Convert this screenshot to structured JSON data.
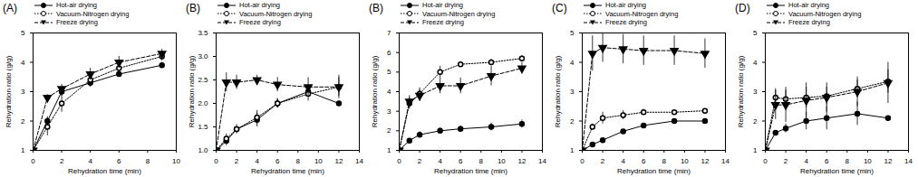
{
  "chart_data": [
    {
      "type": "line",
      "title": "(A)",
      "x_label": "Rehydration time (min)",
      "y_label": "Rehydration ratio (g/g)",
      "x": [
        0,
        1,
        2,
        4,
        6,
        9
      ],
      "xlim": [
        0,
        10
      ],
      "xticks": [
        0,
        2,
        4,
        6,
        8,
        10
      ],
      "ylim": [
        1,
        5
      ],
      "yticks": [
        1,
        2,
        3,
        4,
        5
      ],
      "series": [
        {
          "name": "Hot-air drying",
          "color": "#000000",
          "marker": "circle",
          "line_style": "solid",
          "values": [
            1,
            2.0,
            3.0,
            3.3,
            3.6,
            3.9
          ],
          "errors": [
            0,
            0.15,
            0.15,
            0.15,
            0.1,
            0.1
          ]
        },
        {
          "name": "Vacuum-Nitrogen drying",
          "color": "#000000",
          "marker": "open_circle",
          "line_style": "dotted",
          "values": [
            1,
            1.8,
            2.6,
            3.4,
            3.8,
            4.2
          ],
          "errors": [
            0,
            0.3,
            0.3,
            0.2,
            0.15,
            0.15
          ]
        },
        {
          "name": "Freeze drying",
          "color": "#000000",
          "marker": "triangle_down",
          "line_style": "dashed",
          "values": [
            1,
            2.8,
            3.1,
            3.6,
            4.0,
            4.3
          ],
          "errors": [
            0,
            0.1,
            0.15,
            0.2,
            0.2,
            0.15
          ]
        }
      ]
    },
    {
      "type": "line",
      "title": "(B)",
      "x_label": "Rehydration time (min)",
      "y_label": "Rehydration ratio (g/g)",
      "x": [
        0,
        1,
        2,
        4,
        6,
        9,
        12
      ],
      "xlim": [
        0,
        14
      ],
      "xticks": [
        0,
        2,
        4,
        6,
        8,
        10,
        12,
        14
      ],
      "ylim": [
        1,
        3.5
      ],
      "yticks": [
        {
          "value": 1,
          "label": "1.0"
        },
        {
          "value": 1.5,
          "label": "1.5"
        },
        {
          "value": 2,
          "label": "2.0"
        },
        {
          "value": 2.5,
          "label": "2.5"
        },
        {
          "value": 3,
          "label": "3.0"
        },
        {
          "value": 3.5,
          "label": "3.5"
        }
      ],
      "series": [
        {
          "name": "Hot-air drying",
          "color": "#000000",
          "marker": "circle",
          "line_style": "solid",
          "values": [
            1,
            1.2,
            1.45,
            1.65,
            2.0,
            2.25,
            2.0
          ],
          "errors": [
            0,
            0.1,
            0.05,
            0.15,
            0.1,
            0.1,
            0.05
          ]
        },
        {
          "name": "Vacuum-Nitrogen drying",
          "color": "#000000",
          "marker": "open_circle",
          "line_style": "dotted",
          "values": [
            1,
            1.25,
            1.45,
            1.7,
            2.0,
            2.2,
            2.35
          ],
          "errors": [
            0,
            0.1,
            0.1,
            0.15,
            0.1,
            0.15,
            0.2
          ]
        },
        {
          "name": "Freeze drying",
          "color": "#000000",
          "marker": "triangle_down",
          "line_style": "dashed",
          "values": [
            1,
            2.45,
            2.45,
            2.5,
            2.4,
            2.35,
            2.35
          ],
          "errors": [
            0,
            0.2,
            0.15,
            0.1,
            0.15,
            0.2,
            0.25
          ]
        }
      ]
    },
    {
      "type": "line",
      "title": "(B)",
      "x_label": "Rehydration time (min)",
      "y_label": "Rehydration ratio (g/g)",
      "x": [
        0,
        1,
        2,
        4,
        6,
        9,
        12
      ],
      "xlim": [
        0,
        14
      ],
      "xticks": [
        0,
        2,
        4,
        6,
        8,
        10,
        12,
        14
      ],
      "ylim": [
        1,
        7
      ],
      "yticks": [
        1,
        2,
        3,
        4,
        5,
        6,
        7
      ],
      "series": [
        {
          "name": "Hot-air drying",
          "color": "#000000",
          "marker": "circle",
          "line_style": "solid",
          "values": [
            1,
            1.5,
            1.8,
            2.0,
            2.1,
            2.2,
            2.35
          ],
          "errors": [
            0,
            0.1,
            0.15,
            0.15,
            0.15,
            0.2,
            0.2
          ]
        },
        {
          "name": "Vacuum-Nitrogen drying",
          "color": "#000000",
          "marker": "open_circle",
          "line_style": "dotted",
          "values": [
            1,
            3.4,
            3.9,
            5.0,
            5.4,
            5.5,
            5.7
          ],
          "errors": [
            0,
            0.3,
            0.3,
            0.3,
            0.1,
            0.15,
            0.15
          ]
        },
        {
          "name": "Freeze drying",
          "color": "#000000",
          "marker": "triangle_down",
          "line_style": "dashed",
          "values": [
            1,
            3.5,
            3.8,
            4.3,
            4.3,
            4.8,
            5.2
          ],
          "errors": [
            0,
            0.3,
            0.3,
            0.4,
            0.4,
            0.5,
            0.3
          ]
        }
      ]
    },
    {
      "type": "line",
      "title": "(C)",
      "x_label": "Rehydration time (min)",
      "y_label": "Rehydration ratio (g/g)",
      "x": [
        0,
        1,
        2,
        4,
        6,
        9,
        12
      ],
      "xlim": [
        0,
        14
      ],
      "xticks": [
        0,
        2,
        4,
        6,
        8,
        10,
        12,
        14
      ],
      "ylim": [
        1,
        5
      ],
      "yticks": [
        1,
        2,
        3,
        4,
        5
      ],
      "series": [
        {
          "name": "Hot-air drying",
          "color": "#000000",
          "marker": "circle",
          "line_style": "solid",
          "values": [
            1,
            1.2,
            1.35,
            1.65,
            1.85,
            2.0,
            2.0
          ],
          "errors": [
            0,
            0.05,
            0.05,
            0.05,
            0.05,
            0.05,
            0.05
          ]
        },
        {
          "name": "Vacuum-Nitrogen drying",
          "color": "#000000",
          "marker": "open_circle",
          "line_style": "dotted",
          "values": [
            1,
            1.8,
            2.1,
            2.2,
            2.3,
            2.3,
            2.35
          ],
          "errors": [
            0,
            0.1,
            0.2,
            0.15,
            0.1,
            0.05,
            0.05
          ]
        },
        {
          "name": "Freeze drying",
          "color": "#000000",
          "marker": "triangle_down",
          "line_style": "dashed",
          "values": [
            1,
            4.3,
            4.5,
            4.45,
            4.4,
            4.4,
            4.3
          ],
          "errors": [
            0,
            0.6,
            0.5,
            0.5,
            0.5,
            0.5,
            0.5
          ]
        }
      ]
    },
    {
      "type": "line",
      "title": "(D)",
      "x_label": "Rehydration time (min)",
      "y_label": "Rehydration ratio (g/g)",
      "x": [
        0,
        1,
        2,
        4,
        6,
        9,
        12
      ],
      "xlim": [
        0,
        14
      ],
      "xticks": [
        0,
        2,
        4,
        6,
        8,
        10,
        12,
        14
      ],
      "ylim": [
        1,
        5
      ],
      "yticks": [
        1,
        2,
        3,
        4,
        5
      ],
      "series": [
        {
          "name": "Hot-air drying",
          "color": "#000000",
          "marker": "circle",
          "line_style": "solid",
          "values": [
            1,
            1.6,
            1.75,
            2.0,
            2.1,
            2.25,
            2.1
          ],
          "errors": [
            0,
            0.05,
            0.15,
            0.3,
            0.4,
            0.4,
            0.05
          ]
        },
        {
          "name": "Vacuum-Nitrogen drying",
          "color": "#000000",
          "marker": "open_circle",
          "line_style": "dotted",
          "values": [
            1,
            2.8,
            2.75,
            2.8,
            2.85,
            3.1,
            3.35
          ],
          "errors": [
            0,
            0.3,
            0.3,
            0.35,
            0.3,
            0.3,
            0.4
          ]
        },
        {
          "name": "Freeze drying",
          "color": "#000000",
          "marker": "triangle_down",
          "line_style": "dashed",
          "values": [
            1,
            2.55,
            2.55,
            2.7,
            2.8,
            3.0,
            3.3
          ],
          "errors": [
            0,
            0.5,
            0.6,
            0.6,
            0.5,
            0.5,
            0.7
          ]
        }
      ]
    }
  ]
}
